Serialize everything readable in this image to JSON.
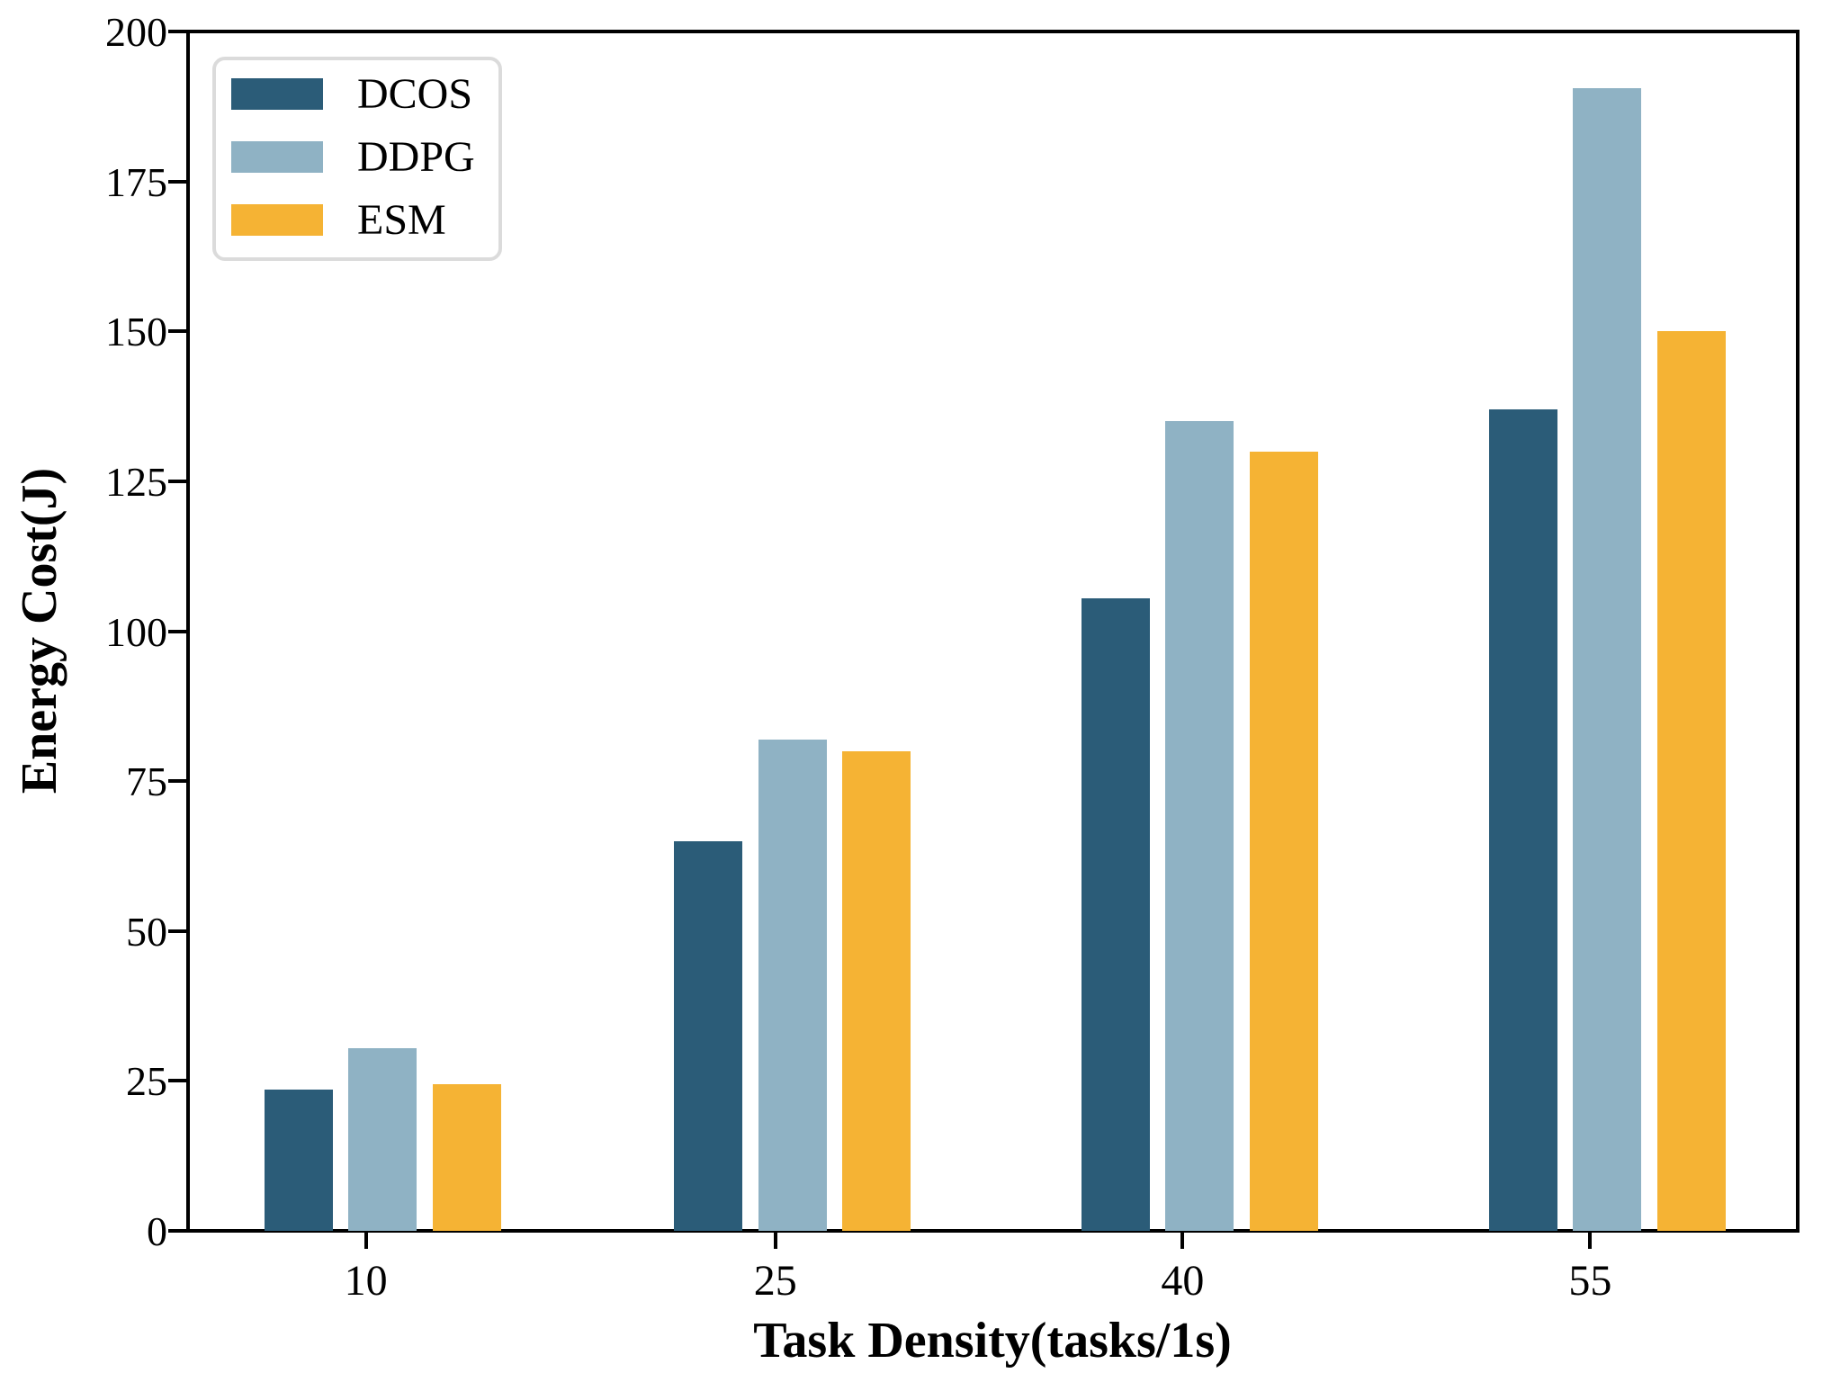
{
  "chart_data": {
    "type": "bar",
    "title": "",
    "xlabel": "Task Density(tasks/1s)",
    "ylabel": "Energy Cost(J)",
    "categories": [
      "10",
      "25",
      "40",
      "55"
    ],
    "series": [
      {
        "name": "DCOS",
        "color": "#2B5C78",
        "values": [
          23.5,
          65,
          105.5,
          137
        ]
      },
      {
        "name": "DDPG",
        "color": "#8FB2C4",
        "values": [
          30.5,
          82,
          135,
          190.5
        ]
      },
      {
        "name": "ESM",
        "color": "#F5B334",
        "values": [
          24.5,
          80,
          130,
          150
        ]
      }
    ],
    "ylim": [
      0,
      200
    ],
    "yticks": [
      0,
      25,
      50,
      75,
      100,
      125,
      150,
      175,
      200
    ],
    "grid": false,
    "legend_position": "upper-left",
    "colors": {
      "axis": "#000000",
      "legend_border": "#dbdbdb",
      "background": "#ffffff"
    }
  }
}
